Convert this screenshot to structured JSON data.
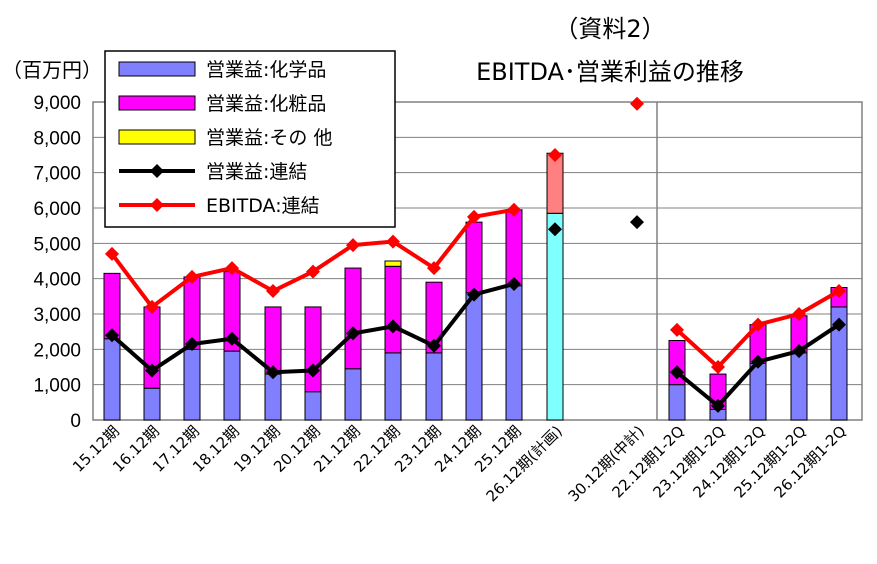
{
  "chart_data": {
    "type": "bar",
    "title_line1": "（資料2）",
    "title_line2": "EBITDA･営業利益の推移",
    "ylabel": "（百万円）",
    "ylim": [
      0,
      9000
    ],
    "yticks": [
      "0",
      "1,000",
      "2,000",
      "3,000",
      "4,000",
      "5,000",
      "6,000",
      "7,000",
      "8,000",
      "9,000"
    ],
    "grid": true,
    "legend_position": "top-left",
    "categories": [
      "15.12期",
      "16.12期",
      "17.12期",
      "18.12期",
      "19.12期",
      "20.12期",
      "21.12期",
      "22.12期",
      "23.12期",
      "24.12期",
      "25.12期",
      "26.12期(計画)",
      "30.12期(中計)",
      "22.12期1-2Q",
      "23.12期1-2Q",
      "24.12期1-2Q",
      "25.12期1-2Q",
      "26.12期1-2Q"
    ],
    "series": [
      {
        "name": "営業益:化学品",
        "kind": "bar",
        "color": "#8080ff",
        "values": [
          2300,
          900,
          2000,
          1950,
          1300,
          800,
          1450,
          1900,
          1900,
          3600,
          3800,
          null,
          null,
          1000,
          300,
          1600,
          1900,
          3200
        ]
      },
      {
        "name": "営業益:化粧品",
        "kind": "bar",
        "color": "#ff00ff",
        "values": [
          1850,
          2300,
          2050,
          2250,
          1900,
          2400,
          2850,
          2450,
          2000,
          2000,
          2150,
          null,
          null,
          1250,
          1000,
          1100,
          1050,
          550
        ]
      },
      {
        "name": "営業益:その 他",
        "kind": "bar",
        "color": "#ffff00",
        "values": [
          0,
          0,
          0,
          0,
          0,
          0,
          0,
          150,
          0,
          0,
          0,
          null,
          null,
          0,
          0,
          0,
          0,
          0
        ]
      },
      {
        "name": "営業益:連結",
        "kind": "line",
        "color": "#000000",
        "values": [
          2400,
          1400,
          2150,
          2300,
          1350,
          1400,
          2450,
          2650,
          2100,
          3550,
          3850,
          5400,
          5600,
          1350,
          400,
          1650,
          1950,
          2700
        ]
      },
      {
        "name": "EBITDA:連結",
        "kind": "line",
        "color": "#ff0000",
        "values": [
          4700,
          3200,
          4050,
          4300,
          3650,
          4200,
          4950,
          5050,
          4300,
          5750,
          5950,
          7500,
          8950,
          2550,
          1500,
          2700,
          3000,
          3650
        ]
      }
    ],
    "plan_bar": {
      "category": "26.12期(計画)",
      "lower_value": 5850,
      "upper_value": 1700,
      "lower_color": "#80ffff",
      "upper_color": "#ff8080"
    }
  }
}
